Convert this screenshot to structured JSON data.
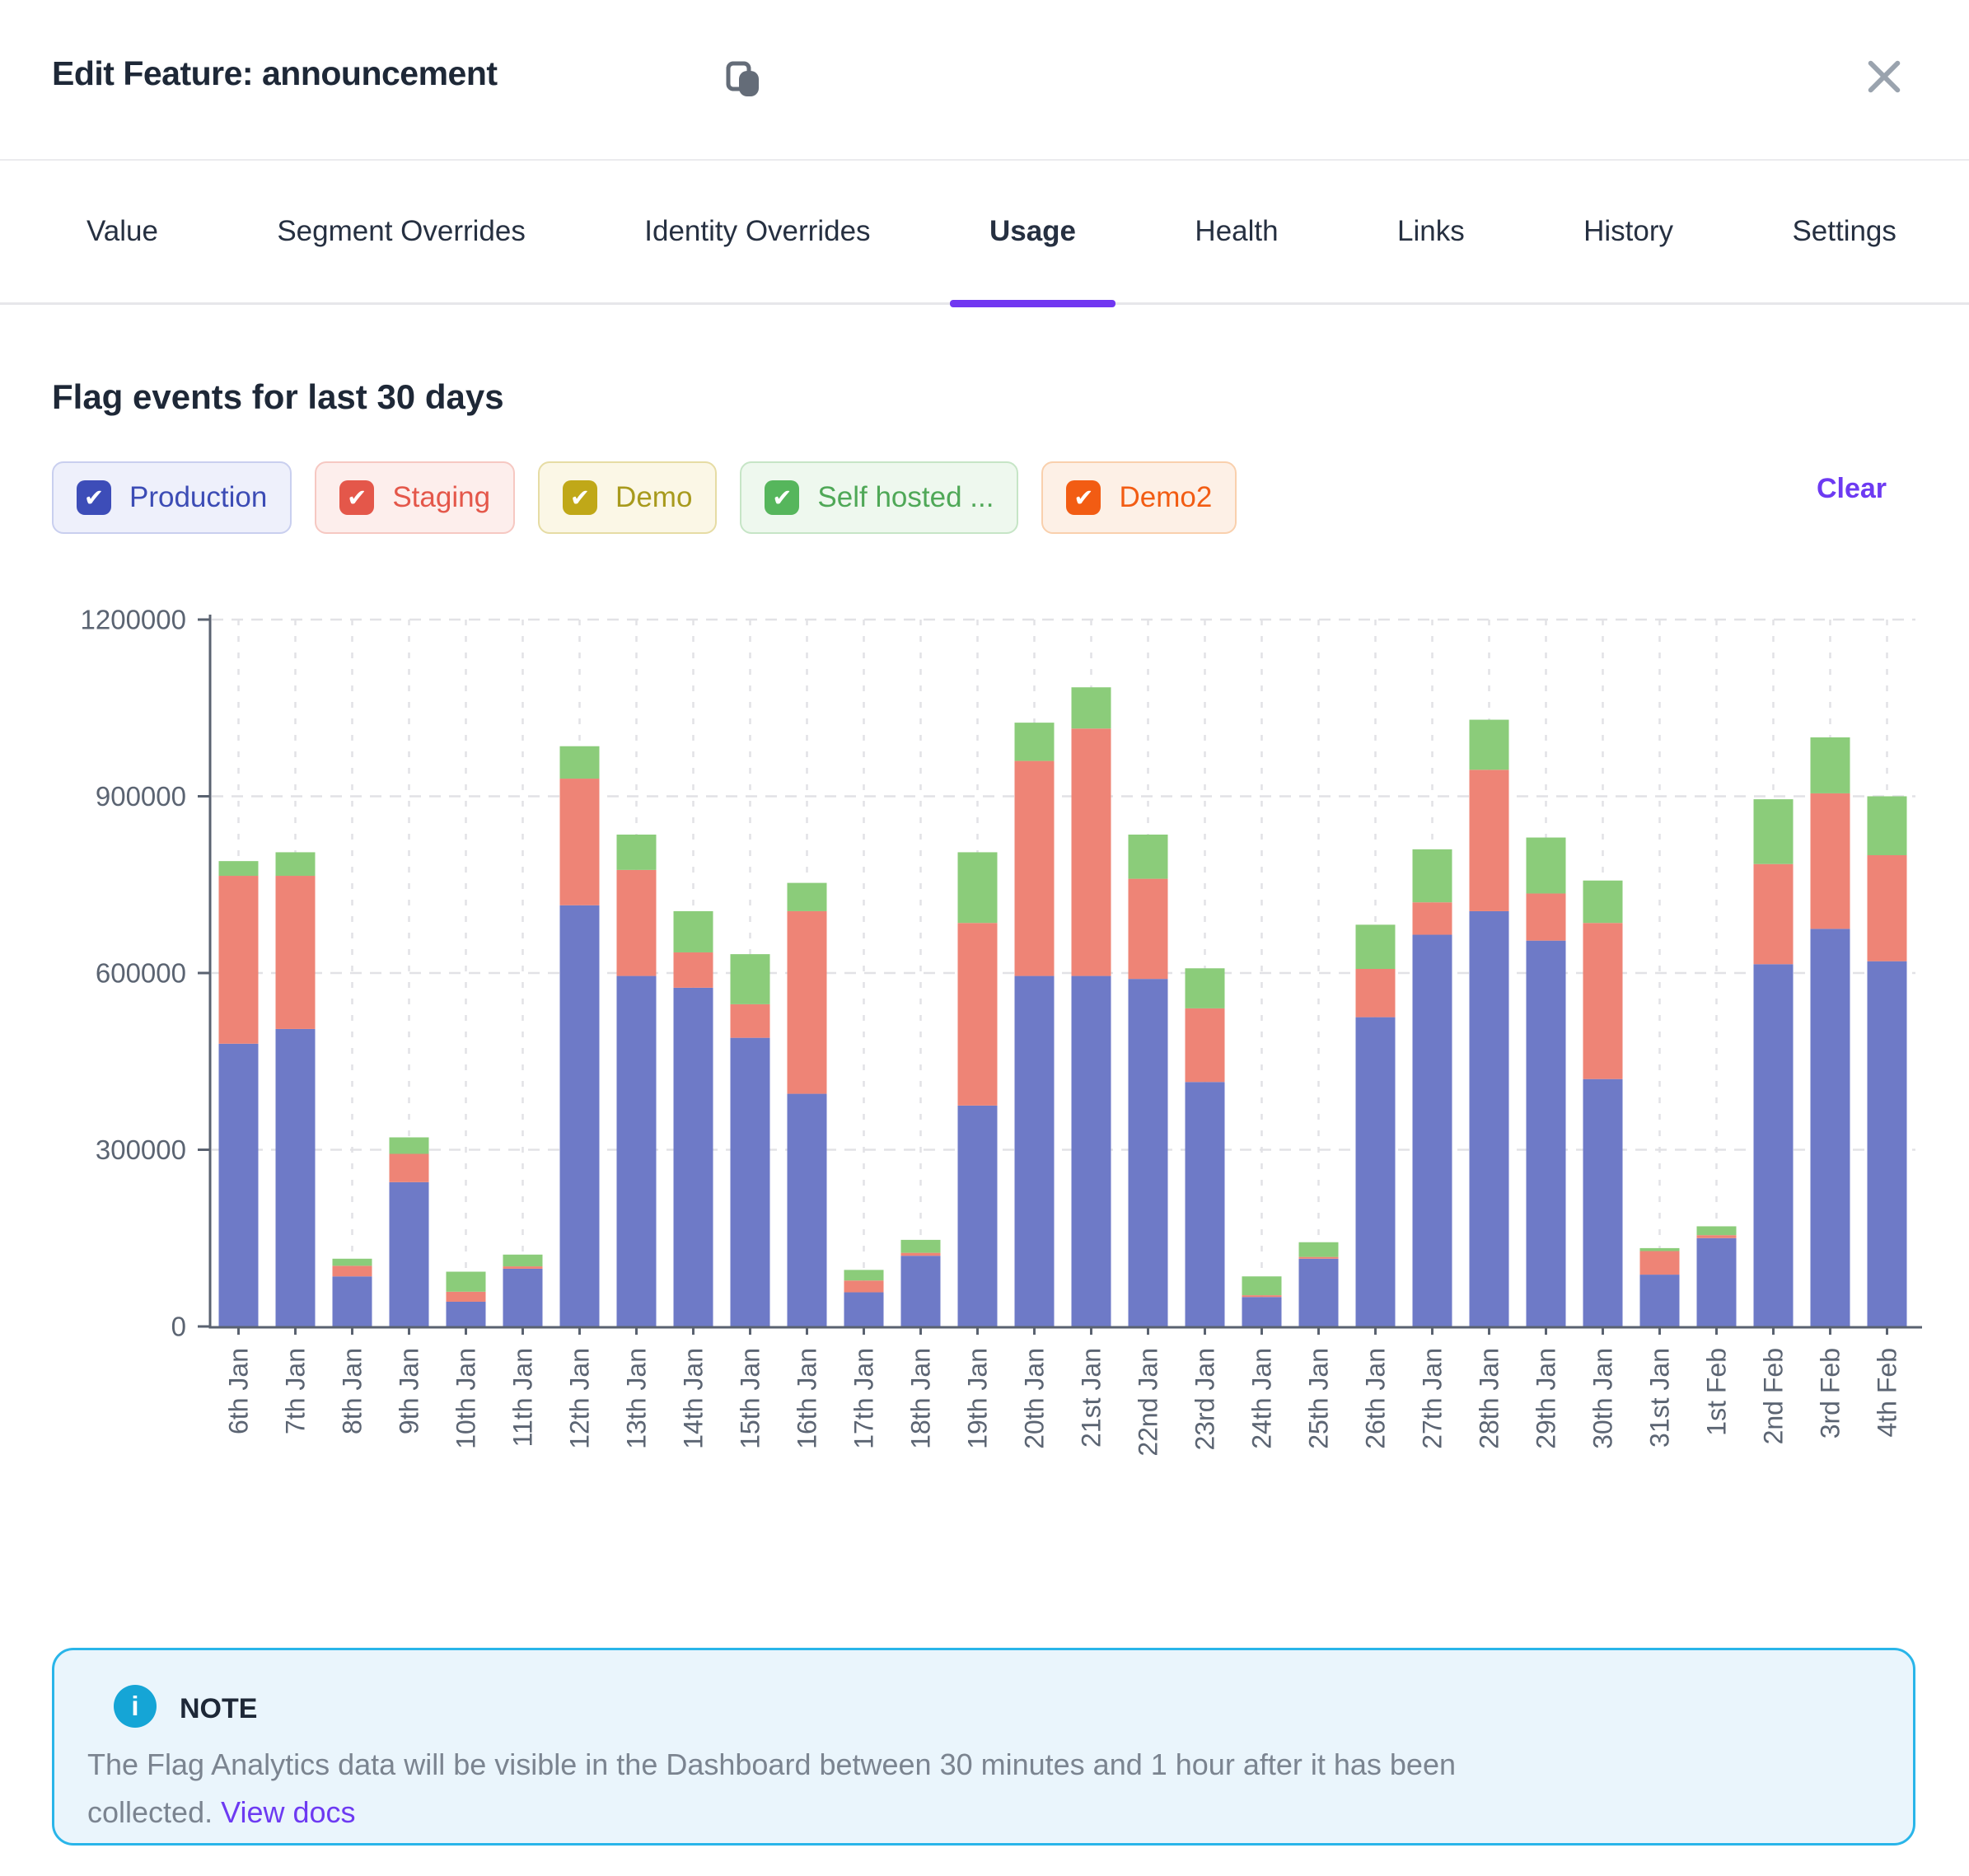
{
  "header": {
    "title": "Edit Feature: announcement"
  },
  "tabs": [
    {
      "label": "Value",
      "active": false
    },
    {
      "label": "Segment Overrides",
      "active": false
    },
    {
      "label": "Identity Overrides",
      "active": false
    },
    {
      "label": "Usage",
      "active": true
    },
    {
      "label": "Health",
      "active": false
    },
    {
      "label": "Links",
      "active": false
    },
    {
      "label": "History",
      "active": false
    },
    {
      "label": "Settings",
      "active": false
    }
  ],
  "section": {
    "heading": "Flag events for last 30 days",
    "clear_label": "Clear"
  },
  "filters": [
    {
      "label": "Production",
      "checked": true,
      "box": "#3d4db8",
      "text": "#3c4cb5",
      "bg": "#eef0fb",
      "border": "#c9cfef"
    },
    {
      "label": "Staging",
      "checked": true,
      "box": "#e4574a",
      "text": "#e4574a",
      "bg": "#fdeeec",
      "border": "#f6c8c2"
    },
    {
      "label": "Demo",
      "checked": true,
      "box": "#c0a818",
      "text": "#a89a1d",
      "bg": "#fbf7e6",
      "border": "#e6dca4"
    },
    {
      "label": "Self hosted ...",
      "checked": true,
      "box": "#56b65c",
      "text": "#4fa857",
      "bg": "#eef8ee",
      "border": "#c6e5c6"
    },
    {
      "label": "Demo2",
      "checked": true,
      "box": "#f25c13",
      "text": "#f25c13",
      "bg": "#fdf0e6",
      "border": "#f9d0ad"
    }
  ],
  "chart_data": {
    "type": "bar",
    "stacked": true,
    "title": "Flag events for last 30 days",
    "xlabel": "",
    "ylabel": "",
    "ylim": [
      0,
      1200000
    ],
    "yticks": [
      0,
      300000,
      600000,
      900000,
      1200000
    ],
    "grid": "dashed",
    "legend_position": "top-filter-chips",
    "categories": [
      "6th Jan",
      "7th Jan",
      "8th Jan",
      "9th Jan",
      "10th Jan",
      "11th Jan",
      "12th Jan",
      "13th Jan",
      "14th Jan",
      "15th Jan",
      "16th Jan",
      "17th Jan",
      "18th Jan",
      "19th Jan",
      "20th Jan",
      "21st Jan",
      "22nd Jan",
      "23rd Jan",
      "24th Jan",
      "25th Jan",
      "26th Jan",
      "27th Jan",
      "28th Jan",
      "29th Jan",
      "30th Jan",
      "31st Jan",
      "1st Feb",
      "2nd Feb",
      "3rd Feb",
      "4th Feb"
    ],
    "series": [
      {
        "name": "Production",
        "color": "#6e7ac7",
        "values": [
          480000,
          505000,
          85000,
          245000,
          42000,
          98000,
          715000,
          595000,
          575000,
          490000,
          395000,
          58000,
          120000,
          375000,
          595000,
          595000,
          590000,
          415000,
          50000,
          115000,
          525000,
          665000,
          705000,
          655000,
          420000,
          88000,
          150000,
          615000,
          675000,
          620000
        ]
      },
      {
        "name": "Staging",
        "color": "#ee8476",
        "values": [
          285000,
          260000,
          18000,
          48000,
          17000,
          4000,
          215000,
          180000,
          60000,
          57000,
          310000,
          20000,
          5000,
          310000,
          365000,
          420000,
          170000,
          125000,
          3000,
          3000,
          82000,
          55000,
          240000,
          80000,
          265000,
          40000,
          5000,
          170000,
          230000,
          180000
        ]
      },
      {
        "name": "Self hosted ...",
        "color": "#8bcc7a",
        "values": [
          25000,
          40000,
          12000,
          28000,
          34000,
          20000,
          55000,
          60000,
          70000,
          85000,
          48000,
          18000,
          22000,
          120000,
          65000,
          70000,
          75000,
          68000,
          32000,
          25000,
          75000,
          90000,
          85000,
          95000,
          72000,
          5000,
          15000,
          110000,
          95000,
          100000
        ]
      },
      {
        "name": "Demo",
        "color": "#c0a818",
        "values": [
          0,
          0,
          0,
          0,
          0,
          0,
          0,
          0,
          0,
          0,
          0,
          0,
          0,
          0,
          0,
          0,
          0,
          0,
          0,
          0,
          0,
          0,
          0,
          0,
          0,
          0,
          0,
          0,
          0,
          0
        ]
      },
      {
        "name": "Demo2",
        "color": "#f25c13",
        "values": [
          0,
          0,
          0,
          0,
          0,
          0,
          0,
          0,
          0,
          0,
          0,
          0,
          0,
          0,
          0,
          0,
          0,
          0,
          0,
          0,
          0,
          0,
          0,
          0,
          0,
          0,
          0,
          0,
          0,
          0
        ]
      }
    ]
  },
  "note": {
    "heading": "NOTE",
    "info_glyph": "i",
    "body_line1": "The Flag Analytics data will be visible in the Dashboard between 30 minutes and 1 hour after it has been",
    "body_line2": "collected.",
    "link_label": "View docs"
  }
}
